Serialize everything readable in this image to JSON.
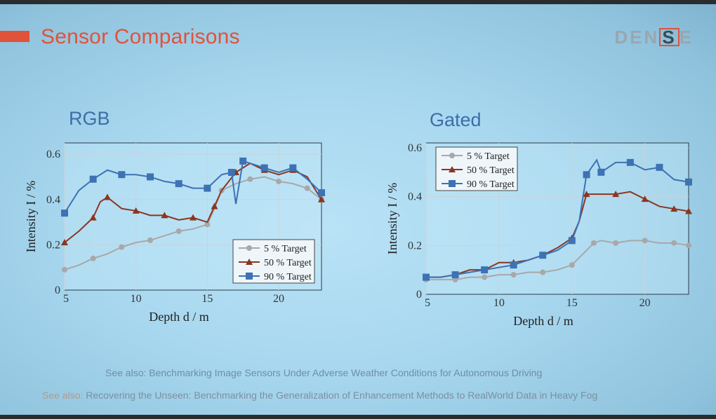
{
  "slide": {
    "title": "Sensor Comparisons",
    "logo": {
      "prefix": "DEN",
      "boxed": "S",
      "suffix": "E"
    },
    "footer_line1": "See also: Benchmarking Image Sensors Under Adverse Weather Conditions for Autonomous Driving",
    "footer_line2_prefix": "See also:",
    "footer_line2_rest": "Recovering the Unseen: Benchmarking the Generalization of Enhancement Methods to RealWorld Data in Heavy Fog"
  },
  "colors": {
    "accent": "#e0533b",
    "blue": "#3d72b4",
    "brown": "#8b3520",
    "gray": "#a8a8a8"
  },
  "chart_data": [
    {
      "type": "line",
      "title": "RGB",
      "xlabel": "Depth  d / m",
      "ylabel": "Intensity  I / %",
      "xlim": [
        5,
        23
      ],
      "ylim": [
        0,
        0.65
      ],
      "xticks": [
        "5",
        "10",
        "15",
        "20"
      ],
      "yticks": [
        "0",
        "0.2",
        "0.4",
        "0.6"
      ],
      "legend": "bottom-right",
      "grid": true,
      "series": [
        {
          "name": "5 % Target",
          "color": "#a8a8a8",
          "x": [
            5,
            6,
            7,
            8,
            9,
            10,
            11,
            12,
            13,
            14,
            15,
            15.5,
            16,
            17,
            18,
            19,
            20,
            21,
            22,
            23
          ],
          "y": [
            0.09,
            0.11,
            0.14,
            0.16,
            0.19,
            0.21,
            0.22,
            0.24,
            0.26,
            0.27,
            0.29,
            0.36,
            0.44,
            0.47,
            0.49,
            0.5,
            0.48,
            0.47,
            0.45,
            0.4
          ]
        },
        {
          "name": "50 % Target",
          "color": "#8b3520",
          "x": [
            5,
            6,
            7,
            7.5,
            8,
            9,
            10,
            11,
            12,
            13,
            14,
            15,
            15.5,
            16,
            17,
            18,
            19,
            20,
            21,
            22,
            23
          ],
          "y": [
            0.21,
            0.26,
            0.32,
            0.39,
            0.41,
            0.36,
            0.35,
            0.33,
            0.33,
            0.31,
            0.32,
            0.3,
            0.37,
            0.44,
            0.52,
            0.56,
            0.53,
            0.51,
            0.53,
            0.5,
            0.4
          ]
        },
        {
          "name": "90 % Target",
          "color": "#3d72b4",
          "x": [
            5,
            6,
            7,
            8,
            9,
            10,
            11,
            12,
            13,
            14,
            15,
            16,
            16.7,
            17,
            17.5,
            18,
            19,
            20,
            21,
            22,
            23
          ],
          "y": [
            0.34,
            0.44,
            0.49,
            0.53,
            0.51,
            0.51,
            0.5,
            0.48,
            0.47,
            0.45,
            0.45,
            0.51,
            0.52,
            0.38,
            0.57,
            0.56,
            0.54,
            0.52,
            0.54,
            0.49,
            0.43
          ]
        }
      ]
    },
    {
      "type": "line",
      "title": "Gated",
      "xlabel": "Depth  d / m",
      "ylabel": "Intensity  I / %",
      "xlim": [
        5,
        23
      ],
      "ylim": [
        0,
        0.62
      ],
      "xticks": [
        "5",
        "10",
        "15",
        "20"
      ],
      "yticks": [
        "0",
        "0.2",
        "0.4",
        "0.6"
      ],
      "legend": "top-left",
      "grid": true,
      "series": [
        {
          "name": "5 % Target",
          "color": "#a8a8a8",
          "x": [
            5,
            6,
            7,
            8,
            9,
            10,
            11,
            12,
            13,
            14,
            15,
            16,
            16.5,
            17,
            18,
            19,
            20,
            21,
            22,
            23
          ],
          "y": [
            0.06,
            0.06,
            0.06,
            0.07,
            0.07,
            0.08,
            0.08,
            0.09,
            0.09,
            0.1,
            0.12,
            0.18,
            0.21,
            0.22,
            0.21,
            0.22,
            0.22,
            0.21,
            0.21,
            0.2
          ]
        },
        {
          "name": "50 % Target",
          "color": "#8b3520",
          "x": [
            5,
            6,
            7,
            8,
            9,
            10,
            11,
            12,
            13,
            14,
            15,
            15.5,
            16,
            17,
            18,
            19,
            20,
            21,
            22,
            23
          ],
          "y": [
            0.07,
            0.07,
            0.08,
            0.1,
            0.1,
            0.13,
            0.13,
            0.14,
            0.16,
            0.19,
            0.23,
            0.3,
            0.41,
            0.41,
            0.41,
            0.42,
            0.39,
            0.36,
            0.35,
            0.34
          ]
        },
        {
          "name": "90 % Target",
          "color": "#3d72b4",
          "x": [
            5,
            6,
            7,
            8,
            9,
            10,
            11,
            12,
            13,
            14,
            15,
            15.5,
            16,
            16.7,
            17,
            18,
            19,
            20,
            21,
            22,
            23
          ],
          "y": [
            0.07,
            0.07,
            0.08,
            0.09,
            0.1,
            0.11,
            0.12,
            0.14,
            0.16,
            0.18,
            0.22,
            0.3,
            0.49,
            0.55,
            0.5,
            0.54,
            0.54,
            0.51,
            0.52,
            0.47,
            0.46
          ]
        }
      ]
    }
  ]
}
